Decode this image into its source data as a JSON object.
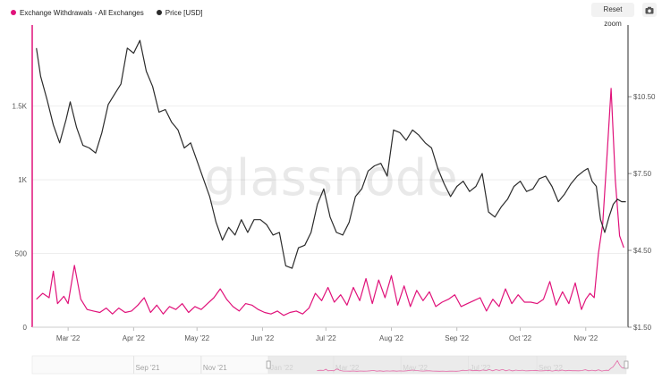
{
  "toolbar": {
    "reset_label": "Reset zoom",
    "camera_icon": "camera-icon"
  },
  "watermark": "glassnode",
  "colors": {
    "withdrawals": "#e0127a",
    "price": "#2b2b2b",
    "navigator_band": "#e4e4e4"
  },
  "chart_data": {
    "type": "line",
    "legend_placement": "top-left",
    "grid": true,
    "x_ticks": [
      "Mar '22",
      "Apr '22",
      "May '22",
      "Jun '22",
      "Jul '22",
      "Aug '22",
      "Sep '22",
      "Oct '22",
      "Nov '22"
    ],
    "navigator_ticks": [
      "Sep '21",
      "Nov '21",
      "Jan '22",
      "Mar '22",
      "May '22",
      "Jul '22",
      "Sep '22"
    ],
    "navigator_labels": [
      "Sep '21",
      "Jan '22",
      "May '22",
      "Sep '22"
    ],
    "y_left": {
      "ticks": [
        "0",
        "500",
        "1K",
        "1.5K"
      ],
      "values": [
        0,
        500,
        1000,
        1500
      ],
      "range": [
        0,
        2050
      ]
    },
    "y_right": {
      "ticks": [
        "$1.50",
        "$4.50",
        "$7.50",
        "$10.50"
      ],
      "values": [
        1.5,
        4.5,
        7.5,
        10.5
      ],
      "range": [
        1.5,
        13.3
      ]
    },
    "series": [
      {
        "name": "Exchange Withdrawals - All Exchanges",
        "axis": "left",
        "x": [
          "2022-02-14",
          "2022-02-17",
          "2022-02-20",
          "2022-02-22",
          "2022-02-24",
          "2022-02-27",
          "2022-03-01",
          "2022-03-04",
          "2022-03-07",
          "2022-03-10",
          "2022-03-13",
          "2022-03-16",
          "2022-03-19",
          "2022-03-22",
          "2022-03-25",
          "2022-03-28",
          "2022-03-31",
          "2022-04-03",
          "2022-04-06",
          "2022-04-09",
          "2022-04-12",
          "2022-04-15",
          "2022-04-18",
          "2022-04-21",
          "2022-04-24",
          "2022-04-27",
          "2022-04-30",
          "2022-05-03",
          "2022-05-06",
          "2022-05-09",
          "2022-05-12",
          "2022-05-15",
          "2022-05-18",
          "2022-05-21",
          "2022-05-24",
          "2022-05-27",
          "2022-05-30",
          "2022-06-02",
          "2022-06-05",
          "2022-06-08",
          "2022-06-11",
          "2022-06-14",
          "2022-06-17",
          "2022-06-20",
          "2022-06-23",
          "2022-06-26",
          "2022-06-29",
          "2022-07-02",
          "2022-07-05",
          "2022-07-08",
          "2022-07-11",
          "2022-07-14",
          "2022-07-17",
          "2022-07-20",
          "2022-07-23",
          "2022-07-26",
          "2022-07-29",
          "2022-08-01",
          "2022-08-04",
          "2022-08-07",
          "2022-08-10",
          "2022-08-13",
          "2022-08-16",
          "2022-08-19",
          "2022-08-22",
          "2022-08-25",
          "2022-08-28",
          "2022-08-31",
          "2022-09-03",
          "2022-09-06",
          "2022-09-09",
          "2022-09-12",
          "2022-09-15",
          "2022-09-18",
          "2022-09-21",
          "2022-09-24",
          "2022-09-27",
          "2022-09-30",
          "2022-10-03",
          "2022-10-06",
          "2022-10-09",
          "2022-10-12",
          "2022-10-15",
          "2022-10-18",
          "2022-10-21",
          "2022-10-24",
          "2022-10-27",
          "2022-10-30",
          "2022-11-01",
          "2022-11-03",
          "2022-11-05",
          "2022-11-07",
          "2022-11-09",
          "2022-11-11",
          "2022-11-13",
          "2022-11-15",
          "2022-11-17",
          "2022-11-19"
        ],
        "y": [
          190,
          230,
          200,
          380,
          160,
          210,
          160,
          420,
          190,
          120,
          110,
          100,
          130,
          90,
          130,
          100,
          110,
          150,
          200,
          100,
          150,
          90,
          140,
          120,
          160,
          100,
          140,
          120,
          160,
          200,
          260,
          190,
          140,
          110,
          160,
          150,
          120,
          100,
          90,
          110,
          80,
          100,
          110,
          90,
          130,
          230,
          180,
          270,
          170,
          220,
          150,
          270,
          180,
          330,
          160,
          320,
          200,
          350,
          150,
          280,
          140,
          250,
          180,
          240,
          140,
          170,
          190,
          220,
          140,
          160,
          180,
          200,
          110,
          190,
          140,
          260,
          160,
          220,
          170,
          170,
          160,
          190,
          310,
          150,
          240,
          160,
          300,
          120,
          190,
          230,
          200,
          500,
          700,
          1150,
          1620,
          1000,
          620,
          540
        ]
      },
      {
        "name": "Price [USD]",
        "axis": "right",
        "x": [
          "2022-02-14",
          "2022-02-16",
          "2022-02-19",
          "2022-02-22",
          "2022-02-25",
          "2022-02-28",
          "2022-03-02",
          "2022-03-05",
          "2022-03-08",
          "2022-03-11",
          "2022-03-14",
          "2022-03-17",
          "2022-03-20",
          "2022-03-23",
          "2022-03-26",
          "2022-03-29",
          "2022-04-01",
          "2022-04-04",
          "2022-04-07",
          "2022-04-10",
          "2022-04-13",
          "2022-04-16",
          "2022-04-19",
          "2022-04-22",
          "2022-04-25",
          "2022-04-28",
          "2022-05-01",
          "2022-05-04",
          "2022-05-07",
          "2022-05-10",
          "2022-05-13",
          "2022-05-16",
          "2022-05-19",
          "2022-05-22",
          "2022-05-25",
          "2022-05-28",
          "2022-05-31",
          "2022-06-03",
          "2022-06-06",
          "2022-06-09",
          "2022-06-12",
          "2022-06-15",
          "2022-06-18",
          "2022-06-21",
          "2022-06-24",
          "2022-06-27",
          "2022-06-30",
          "2022-07-03",
          "2022-07-06",
          "2022-07-09",
          "2022-07-12",
          "2022-07-15",
          "2022-07-18",
          "2022-07-21",
          "2022-07-24",
          "2022-07-27",
          "2022-07-30",
          "2022-08-02",
          "2022-08-05",
          "2022-08-08",
          "2022-08-11",
          "2022-08-14",
          "2022-08-17",
          "2022-08-20",
          "2022-08-23",
          "2022-08-26",
          "2022-08-29",
          "2022-09-01",
          "2022-09-04",
          "2022-09-07",
          "2022-09-10",
          "2022-09-13",
          "2022-09-16",
          "2022-09-19",
          "2022-09-22",
          "2022-09-25",
          "2022-09-28",
          "2022-10-01",
          "2022-10-04",
          "2022-10-07",
          "2022-10-10",
          "2022-10-13",
          "2022-10-16",
          "2022-10-19",
          "2022-10-22",
          "2022-10-25",
          "2022-10-28",
          "2022-10-31",
          "2022-11-02",
          "2022-11-04",
          "2022-11-06",
          "2022-11-08",
          "2022-11-10",
          "2022-11-12",
          "2022-11-14",
          "2022-11-16",
          "2022-11-18",
          "2022-11-20"
        ],
        "y": [
          12.4,
          11.3,
          10.4,
          9.4,
          8.7,
          9.6,
          10.3,
          9.3,
          8.6,
          8.5,
          8.3,
          9.1,
          10.2,
          10.6,
          11.0,
          12.4,
          12.2,
          12.7,
          11.5,
          10.9,
          9.9,
          10.0,
          9.5,
          9.2,
          8.5,
          8.7,
          8.0,
          7.3,
          6.6,
          5.6,
          4.9,
          5.4,
          5.1,
          5.7,
          5.2,
          5.7,
          5.7,
          5.5,
          5.1,
          5.2,
          3.9,
          3.8,
          4.6,
          4.7,
          5.2,
          6.3,
          6.9,
          5.8,
          5.2,
          5.1,
          5.6,
          6.6,
          6.9,
          7.6,
          7.8,
          7.9,
          7.4,
          9.2,
          9.1,
          8.8,
          9.2,
          9.0,
          8.7,
          8.5,
          7.7,
          7.1,
          6.6,
          7.0,
          7.2,
          6.8,
          7.0,
          7.5,
          6.0,
          5.8,
          6.2,
          6.5,
          7.0,
          7.2,
          6.8,
          6.9,
          7.3,
          7.4,
          7.0,
          6.4,
          6.7,
          7.1,
          7.4,
          7.6,
          7.7,
          7.2,
          7.0,
          5.7,
          5.2,
          5.8,
          6.3,
          6.5,
          6.4,
          6.4
        ]
      }
    ]
  }
}
